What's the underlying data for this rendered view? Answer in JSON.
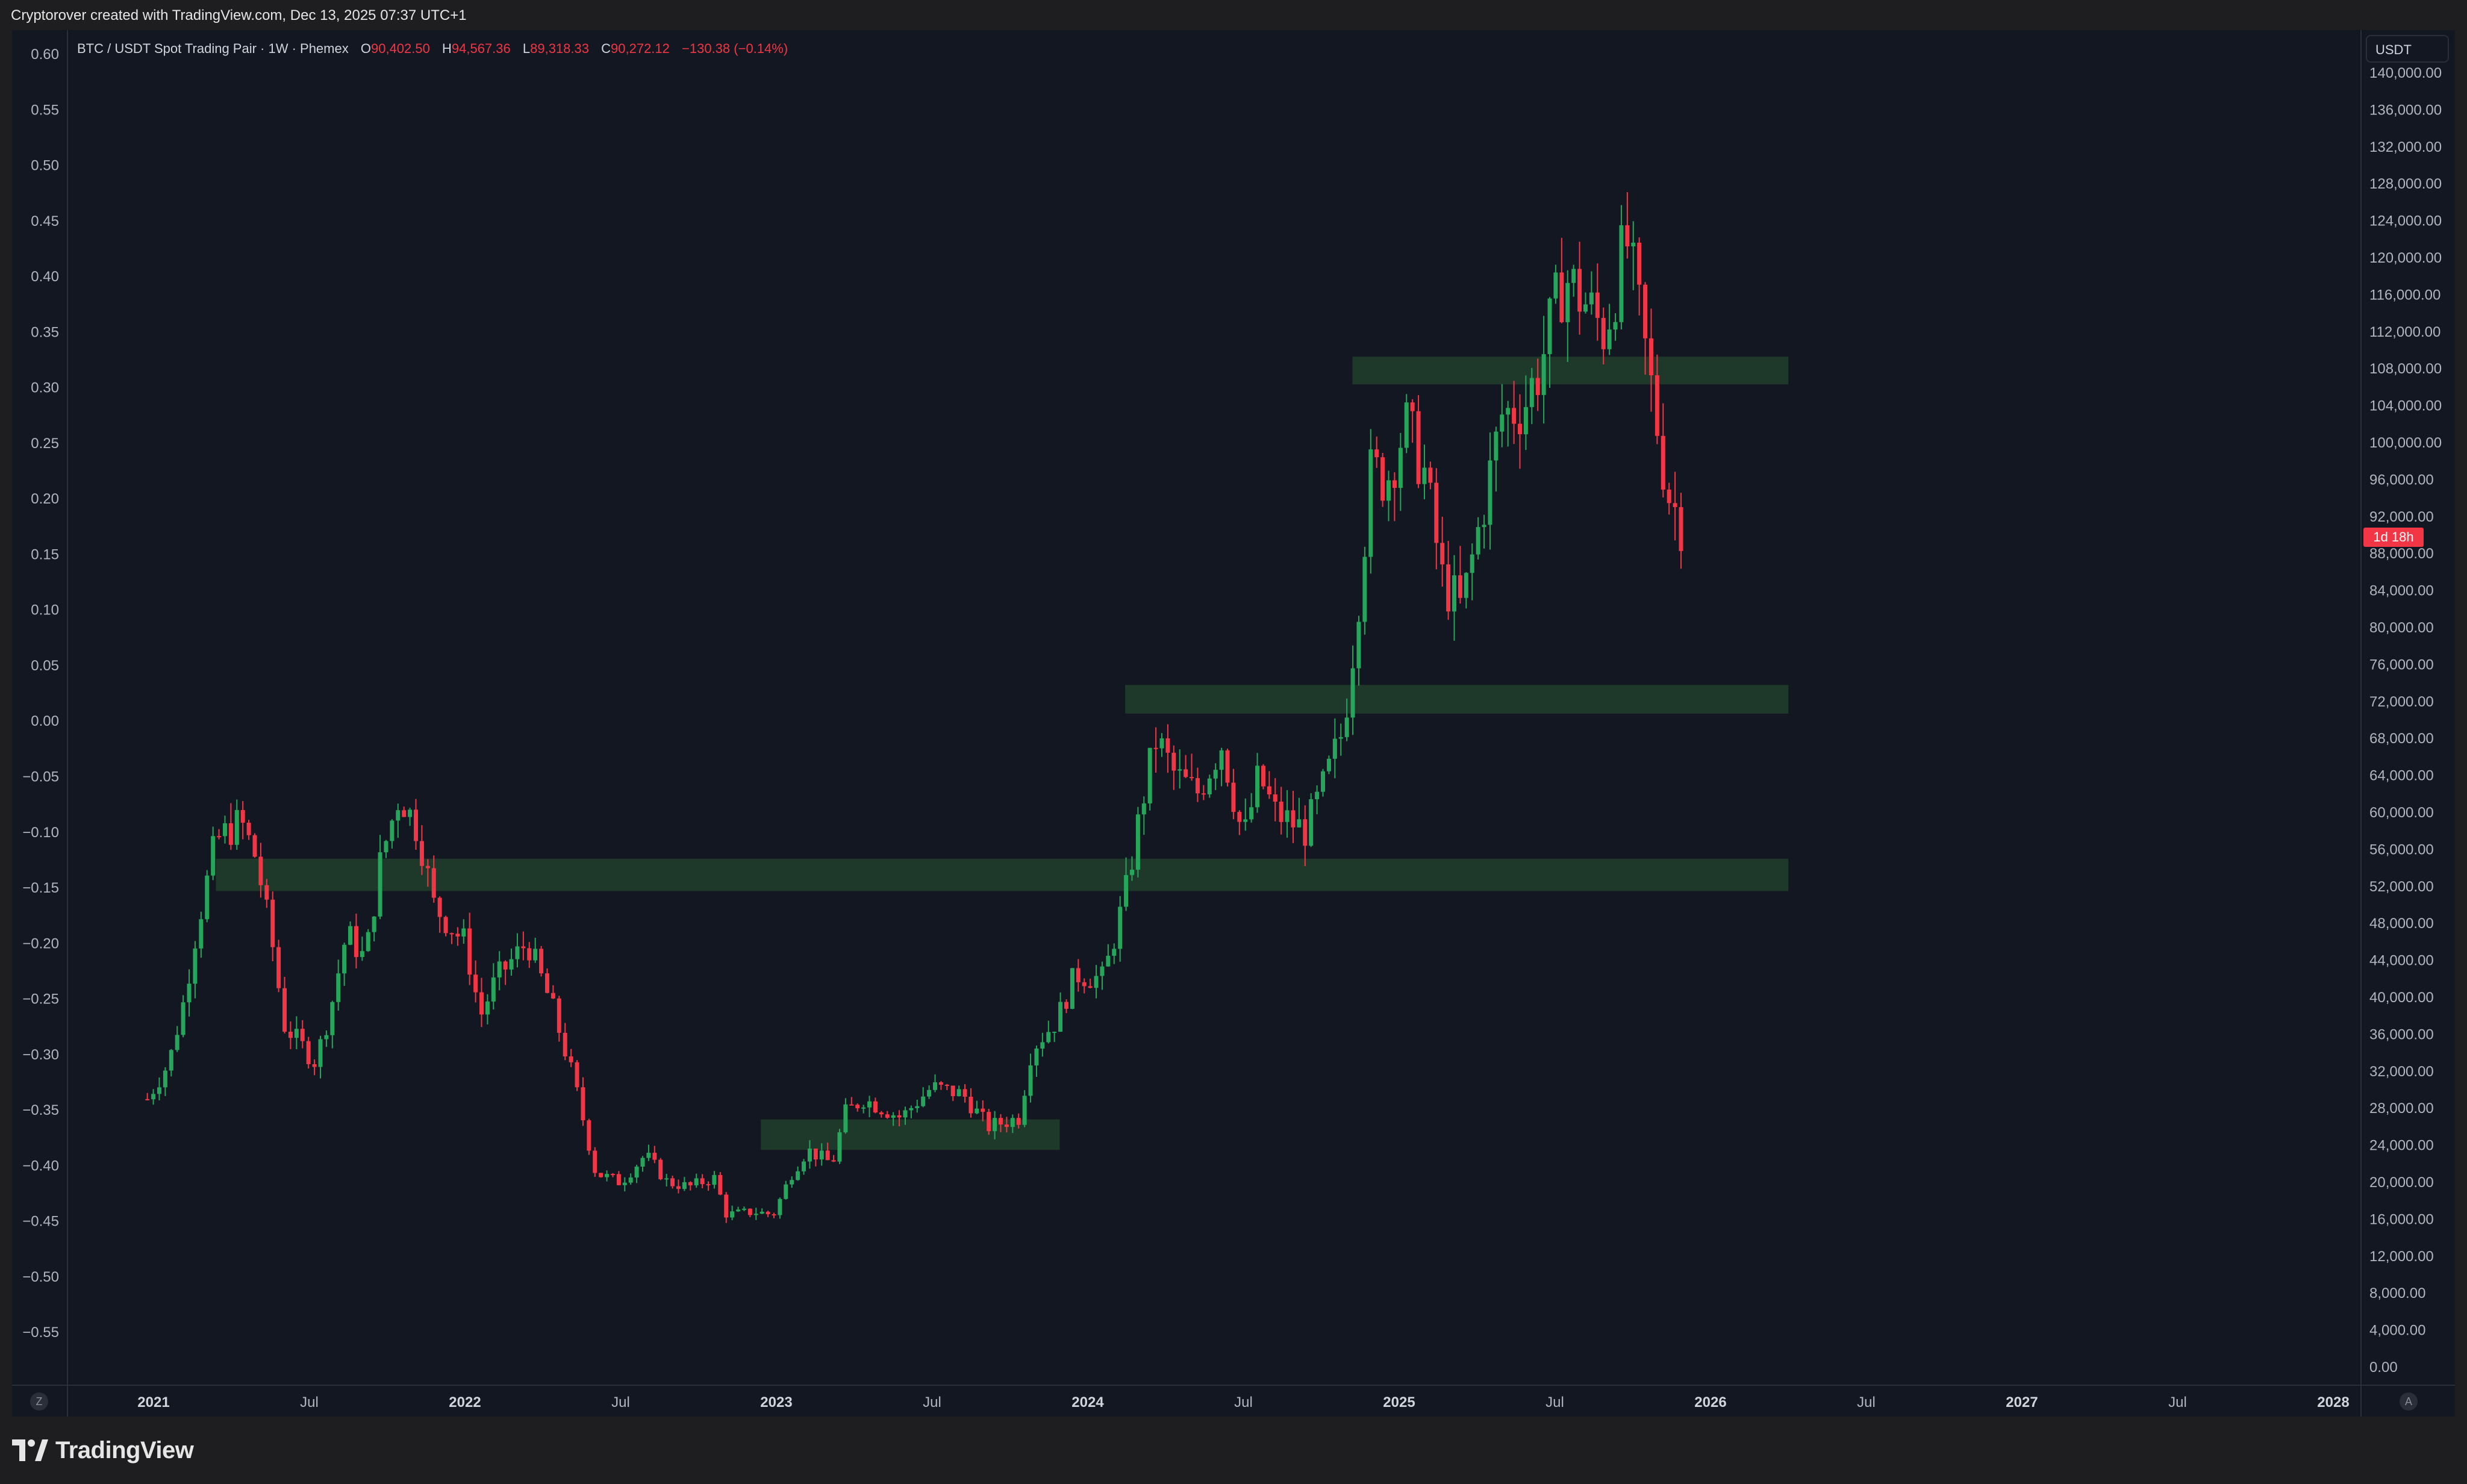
{
  "header": {
    "caption": "Cryptorover created with TradingView.com, Dec 13, 2025 07:37 UTC+1"
  },
  "legend": {
    "symbol": "BTC / USDT Spot Trading Pair · 1W · Phemex",
    "open_key": "O",
    "open": "90,402.50",
    "high_key": "H",
    "high": "94,567.36",
    "low_key": "L",
    "low": "89,318.33",
    "close_key": "C",
    "close": "90,272.12",
    "change": "−130.38 (−0.14%)"
  },
  "price_scale": {
    "currency": "USDT",
    "countdown": "1d 18h"
  },
  "corner_buttons": {
    "left": "Z",
    "right": "A"
  },
  "branding": {
    "logo_text": "TradingView"
  },
  "colors": {
    "background": "#131722",
    "up": "#26a65b",
    "down": "#f23645",
    "zone": "#1f3a2b",
    "axis_text": "#b2b5be",
    "grid": "#2a2e39"
  },
  "chart_data": {
    "type": "candlestick",
    "interval": "1W",
    "x_axis_labels": [
      "2021",
      "Jul",
      "2022",
      "Jul",
      "2023",
      "Jul",
      "2024",
      "Jul",
      "2025",
      "Jul",
      "2026",
      "Jul",
      "2027",
      "Jul",
      "2028"
    ],
    "right_axis": {
      "unit": "USDT",
      "ylim": [
        0,
        142000
      ],
      "ticks": [
        "140,000.00",
        "136,000.00",
        "132,000.00",
        "128,000.00",
        "124,000.00",
        "120,000.00",
        "116,000.00",
        "112,000.00",
        "108,000.00",
        "104,000.00",
        "100,000.00",
        "96,000.00",
        "92,000.00",
        "88,000.00",
        "84,000.00",
        "80,000.00",
        "76,000.00",
        "72,000.00",
        "68,000.00",
        "64,000.00",
        "60,000.00",
        "56,000.00",
        "52,000.00",
        "48,000.00",
        "44,000.00",
        "40,000.00",
        "36,000.00",
        "32,000.00",
        "28,000.00",
        "24,000.00",
        "20,000.00",
        "16,000.00",
        "12,000.00",
        "8,000.00",
        "4,000.00",
        "0.00"
      ]
    },
    "left_axis": {
      "ticks": [
        "0.60",
        "0.55",
        "0.50",
        "0.45",
        "0.40",
        "0.35",
        "0.30",
        "0.25",
        "0.20",
        "0.15",
        "0.10",
        "0.05",
        "0.00",
        "−0.05",
        "−0.10",
        "−0.15",
        "−0.20",
        "−0.25",
        "−0.30",
        "−0.35",
        "−0.40",
        "−0.45",
        "−0.50",
        "−0.55"
      ]
    },
    "zones": [
      {
        "start": 2021.2,
        "end": 2026.25,
        "low": 51500,
        "high": 55000
      },
      {
        "start": 2022.95,
        "end": 2023.91,
        "low": 23500,
        "high": 26800
      },
      {
        "start": 2024.12,
        "end": 2026.25,
        "low": 70700,
        "high": 73800
      },
      {
        "start": 2024.85,
        "end": 2026.25,
        "low": 106300,
        "high": 109300
      }
    ],
    "close_path": [
      [
        2020.98,
        29000
      ],
      [
        2021.05,
        33000
      ],
      [
        2021.1,
        40000
      ],
      [
        2021.13,
        46000
      ],
      [
        2021.2,
        57000
      ],
      [
        2021.28,
        59000
      ],
      [
        2021.33,
        55000
      ],
      [
        2021.38,
        46000
      ],
      [
        2021.42,
        37000
      ],
      [
        2021.47,
        35000
      ],
      [
        2021.52,
        33000
      ],
      [
        2021.57,
        39000
      ],
      [
        2021.62,
        47000
      ],
      [
        2021.68,
        44000
      ],
      [
        2021.73,
        55000
      ],
      [
        2021.79,
        62000
      ],
      [
        2021.85,
        58000
      ],
      [
        2021.9,
        50000
      ],
      [
        2021.97,
        47000
      ],
      [
        2022.0,
        46000
      ],
      [
        2022.05,
        38000
      ],
      [
        2022.1,
        42000
      ],
      [
        2022.2,
        46000
      ],
      [
        2022.28,
        39000
      ],
      [
        2022.35,
        31000
      ],
      [
        2022.42,
        21000
      ],
      [
        2022.5,
        20000
      ],
      [
        2022.58,
        23000
      ],
      [
        2022.65,
        20000
      ],
      [
        2022.72,
        19500
      ],
      [
        2022.8,
        20500
      ],
      [
        2022.84,
        16500
      ],
      [
        2022.93,
        16800
      ],
      [
        2022.99,
        16500
      ],
      [
        2023.05,
        21000
      ],
      [
        2023.1,
        23500
      ],
      [
        2023.18,
        22000
      ],
      [
        2023.22,
        27500
      ],
      [
        2023.28,
        29000
      ],
      [
        2023.4,
        27000
      ],
      [
        2023.5,
        30300
      ],
      [
        2023.6,
        29500
      ],
      [
        2023.68,
        26000
      ],
      [
        2023.78,
        27000
      ],
      [
        2023.82,
        34500
      ],
      [
        2023.9,
        37500
      ],
      [
        2023.96,
        42500
      ],
      [
        2024.05,
        42000
      ],
      [
        2024.12,
        51000
      ],
      [
        2024.18,
        62000
      ],
      [
        2024.22,
        68000
      ],
      [
        2024.28,
        64000
      ],
      [
        2024.35,
        62000
      ],
      [
        2024.43,
        67500
      ],
      [
        2024.5,
        57000
      ],
      [
        2024.55,
        64000
      ],
      [
        2024.6,
        60000
      ],
      [
        2024.7,
        58000
      ],
      [
        2024.76,
        63000
      ],
      [
        2024.82,
        69000
      ],
      [
        2024.86,
        80000
      ],
      [
        2024.91,
        97000
      ],
      [
        2024.96,
        96000
      ],
      [
        2025.02,
        102000
      ],
      [
        2025.08,
        97000
      ],
      [
        2025.14,
        85000
      ],
      [
        2025.2,
        82000
      ],
      [
        2025.27,
        93000
      ],
      [
        2025.33,
        103000
      ],
      [
        2025.4,
        104000
      ],
      [
        2025.45,
        108000
      ],
      [
        2025.53,
        118000
      ],
      [
        2025.6,
        115000
      ],
      [
        2025.66,
        112000
      ],
      [
        2025.73,
        122000
      ],
      [
        2025.8,
        108000
      ],
      [
        2025.86,
        95000
      ],
      [
        2025.92,
        90272
      ]
    ]
  }
}
